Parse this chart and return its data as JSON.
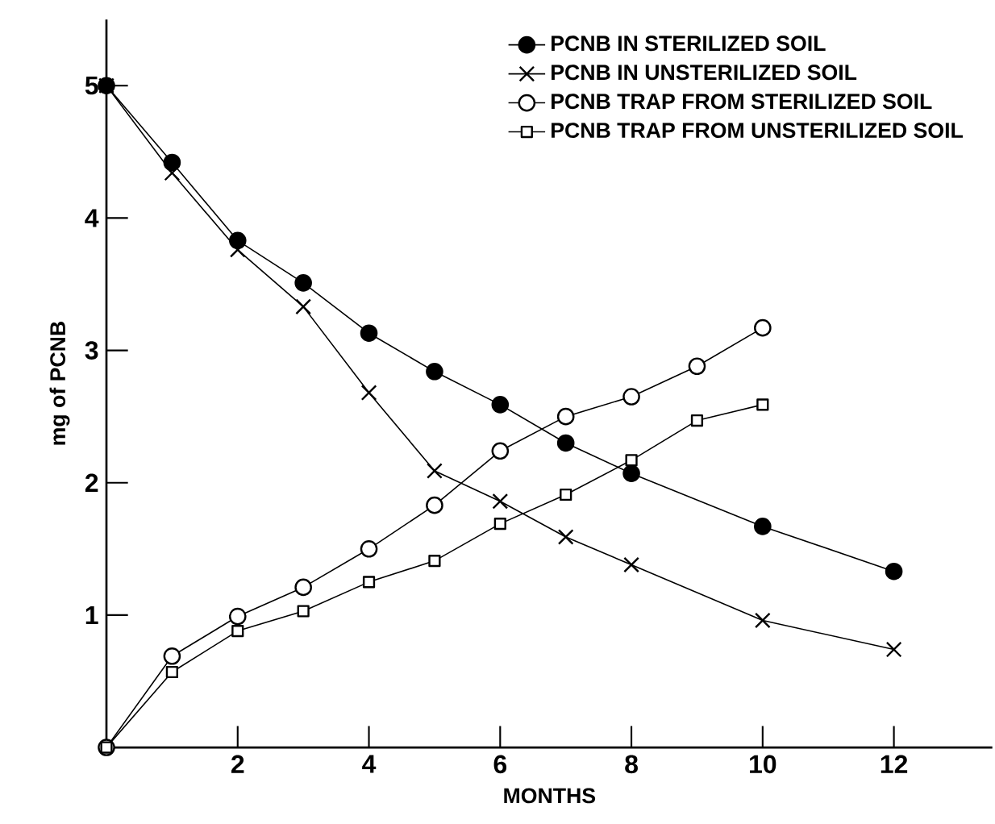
{
  "chart_data": {
    "type": "line",
    "xlabel": "MONTHS",
    "ylabel": "mg of PCNB",
    "xlim": [
      0,
      13.5
    ],
    "ylim": [
      0,
      5.5
    ],
    "xticks": [
      2,
      4,
      6,
      8,
      10,
      12
    ],
    "yticks": [
      1,
      2,
      3,
      4,
      5
    ],
    "legend": "top right",
    "line_style": "solid",
    "series": [
      {
        "name": "PCNB IN STERILIZED SOIL",
        "color": "#000000",
        "marker": "circle",
        "x": [
          0,
          1,
          2,
          3,
          4,
          5,
          6,
          7,
          8,
          10,
          12
        ],
        "values": [
          5,
          4.42,
          3.83,
          3.51,
          3.13,
          2.84,
          2.59,
          2.3,
          2.07,
          1.67,
          1.33
        ]
      },
      {
        "name": "PCNB IN UNSTERILIZED SOIL",
        "color": "#000000",
        "marker": "cross",
        "x": [
          0,
          1,
          2,
          3,
          4,
          5,
          6,
          7,
          8,
          10,
          12
        ],
        "values": [
          5,
          4.34,
          3.76,
          3.33,
          2.68,
          2.09,
          1.86,
          1.59,
          1.38,
          0.96,
          0.74
        ]
      },
      {
        "name": "PCNB TRAP FROM STERILIZED SOIL",
        "color": "#000000",
        "marker": "circle",
        "x": [
          0,
          1,
          2,
          3,
          4,
          5,
          6,
          7,
          8,
          9,
          10
        ],
        "values": [
          0,
          0.69,
          0.99,
          1.21,
          1.5,
          1.83,
          2.24,
          2.5,
          2.65,
          2.88,
          3.17
        ]
      },
      {
        "name": "PCNB TRAP FROM UNSTERILIZED SOIL",
        "color": "#000000",
        "marker": "square",
        "x": [
          0,
          1,
          2,
          3,
          4,
          5,
          6,
          7,
          8,
          9,
          10
        ],
        "values": [
          0,
          0.57,
          0.88,
          1.03,
          1.25,
          1.41,
          1.69,
          1.91,
          2.17,
          2.47,
          2.59
        ]
      }
    ]
  }
}
